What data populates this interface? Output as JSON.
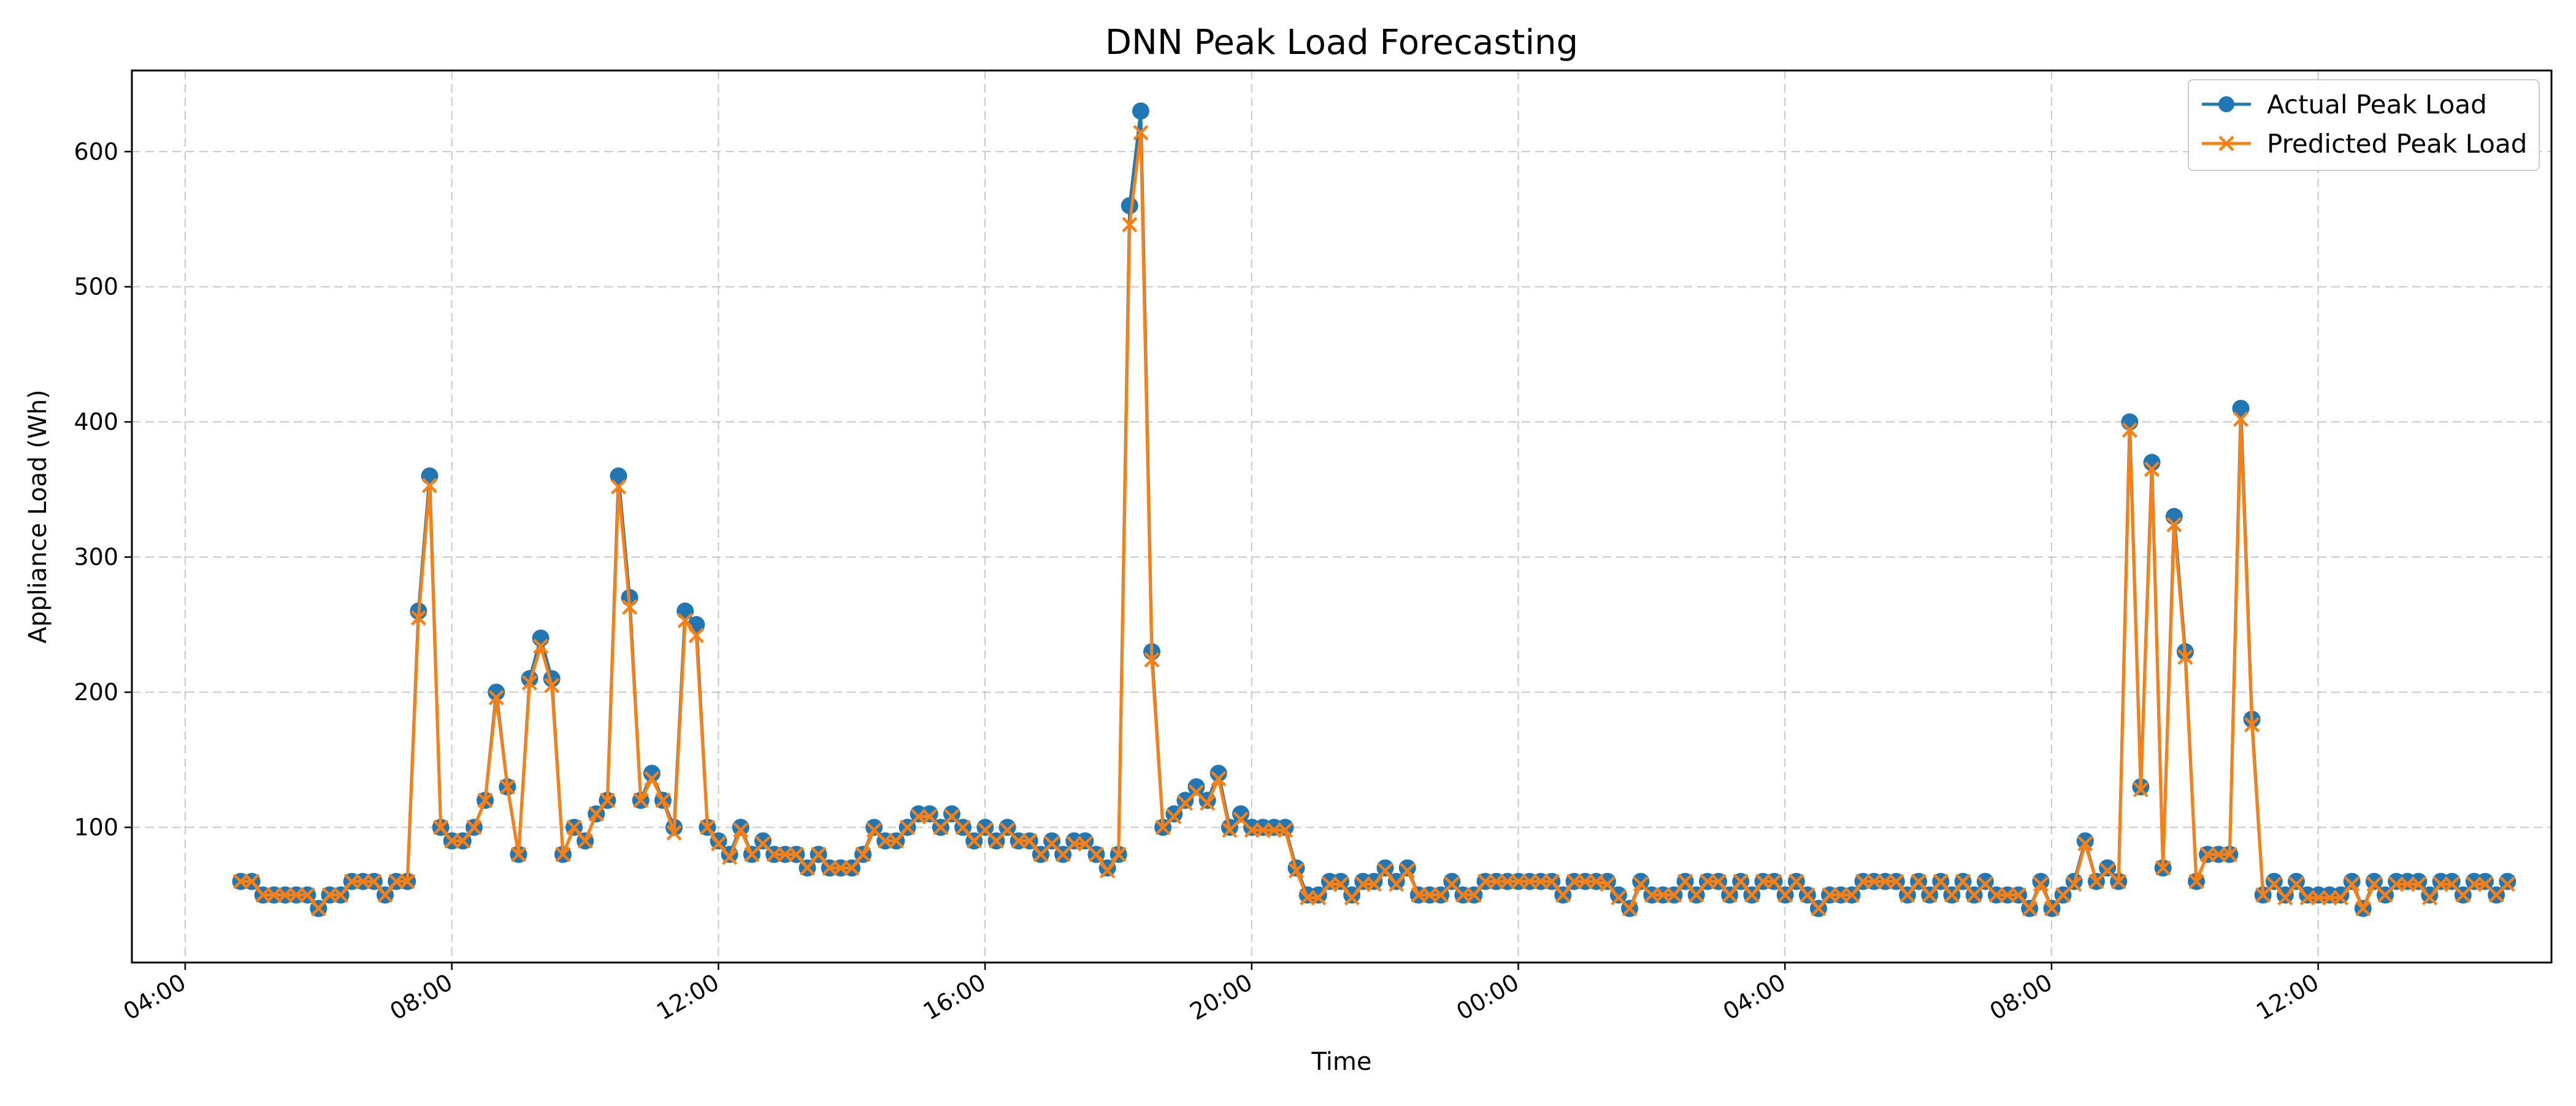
{
  "chart_data": {
    "type": "line",
    "title": "DNN Peak Load Forecasting",
    "xlabel": "Time",
    "ylabel": "Appliance Load (Wh)",
    "x_unit": "hours",
    "x_ticks": [
      {
        "value": 4,
        "label": "04:00"
      },
      {
        "value": 8,
        "label": "08:00"
      },
      {
        "value": 12,
        "label": "12:00"
      },
      {
        "value": 16,
        "label": "16:00"
      },
      {
        "value": 20,
        "label": "20:00"
      },
      {
        "value": 24,
        "label": "00:00"
      },
      {
        "value": 28,
        "label": "04:00"
      },
      {
        "value": 32,
        "label": "08:00"
      },
      {
        "value": 36,
        "label": "12:00"
      }
    ],
    "y_ticks": [
      100,
      200,
      300,
      400,
      500,
      600
    ],
    "xlim": [
      3.2,
      39.5
    ],
    "ylim": [
      0,
      660
    ],
    "x_start": 4.833,
    "x_step": 0.1667,
    "grid": true,
    "legend_position": "top-right",
    "series": [
      {
        "name": "Actual Peak Load",
        "color": "#1f77b4",
        "marker": "circle",
        "values": [
          60,
          60,
          50,
          50,
          50,
          50,
          50,
          40,
          50,
          50,
          60,
          60,
          60,
          50,
          60,
          60,
          260,
          360,
          100,
          90,
          90,
          100,
          120,
          200,
          130,
          80,
          210,
          240,
          210,
          80,
          100,
          90,
          110,
          120,
          360,
          270,
          120,
          140,
          120,
          100,
          260,
          250,
          100,
          90,
          80,
          100,
          80,
          90,
          80,
          80,
          80,
          70,
          80,
          70,
          70,
          70,
          80,
          100,
          90,
          90,
          100,
          110,
          110,
          100,
          110,
          100,
          90,
          100,
          90,
          100,
          90,
          90,
          80,
          90,
          80,
          90,
          90,
          80,
          70,
          80,
          560,
          630,
          230,
          100,
          110,
          120,
          130,
          120,
          140,
          100,
          110,
          100,
          100,
          100,
          100,
          70,
          50,
          50,
          60,
          60,
          50,
          60,
          60,
          70,
          60,
          70,
          50,
          50,
          50,
          60,
          50,
          50,
          60,
          60,
          60,
          60,
          60,
          60,
          60,
          50,
          60,
          60,
          60,
          60,
          50,
          40,
          60,
          50,
          50,
          50,
          60,
          50,
          60,
          60,
          50,
          60,
          50,
          60,
          60,
          50,
          60,
          50,
          40,
          50,
          50,
          50,
          60,
          60,
          60,
          60,
          50,
          60,
          50,
          60,
          50,
          60,
          50,
          60,
          50,
          50,
          50,
          40,
          60,
          40,
          50,
          60,
          90,
          60,
          70,
          60,
          400,
          130,
          370,
          70,
          330,
          230,
          60,
          80,
          80,
          80,
          410,
          180,
          50,
          60,
          50,
          60,
          50,
          50,
          50,
          50,
          60,
          40,
          60,
          50,
          60,
          60,
          60,
          50,
          60,
          60,
          50,
          60,
          60,
          50,
          60
        ]
      },
      {
        "name": "Predicted Peak Load",
        "color": "#ff7f0e",
        "marker": "x",
        "values": [
          60,
          60,
          50,
          50,
          50,
          50,
          50,
          40,
          50,
          50,
          60,
          60,
          60,
          50,
          60,
          60,
          255,
          353,
          100,
          90,
          90,
          100,
          120,
          196,
          130,
          80,
          207,
          234,
          205,
          80,
          100,
          90,
          110,
          120,
          352,
          263,
          120,
          136,
          120,
          96,
          253,
          242,
          100,
          88,
          78,
          98,
          80,
          88,
          80,
          80,
          80,
          70,
          80,
          70,
          70,
          70,
          80,
          98,
          90,
          90,
          100,
          108,
          108,
          100,
          108,
          100,
          90,
          98,
          90,
          98,
          90,
          90,
          80,
          88,
          80,
          88,
          88,
          80,
          68,
          80,
          546,
          614,
          224,
          100,
          108,
          118,
          126,
          118,
          136,
          98,
          106,
          98,
          98,
          98,
          98,
          68,
          48,
          48,
          58,
          58,
          48,
          58,
          58,
          68,
          58,
          68,
          50,
          50,
          50,
          58,
          50,
          50,
          60,
          60,
          60,
          60,
          60,
          60,
          60,
          50,
          60,
          60,
          60,
          58,
          48,
          40,
          58,
          50,
          50,
          50,
          60,
          50,
          60,
          60,
          50,
          60,
          50,
          60,
          60,
          50,
          60,
          50,
          40,
          50,
          50,
          50,
          60,
          60,
          60,
          60,
          50,
          60,
          50,
          60,
          50,
          60,
          50,
          58,
          50,
          50,
          50,
          40,
          58,
          40,
          50,
          58,
          88,
          60,
          68,
          60,
          394,
          128,
          365,
          70,
          324,
          226,
          60,
          80,
          80,
          80,
          402,
          176,
          50,
          58,
          48,
          58,
          48,
          48,
          48,
          48,
          58,
          40,
          58,
          50,
          58,
          58,
          58,
          48,
          58,
          58,
          50,
          58,
          58,
          50,
          58
        ]
      }
    ]
  }
}
